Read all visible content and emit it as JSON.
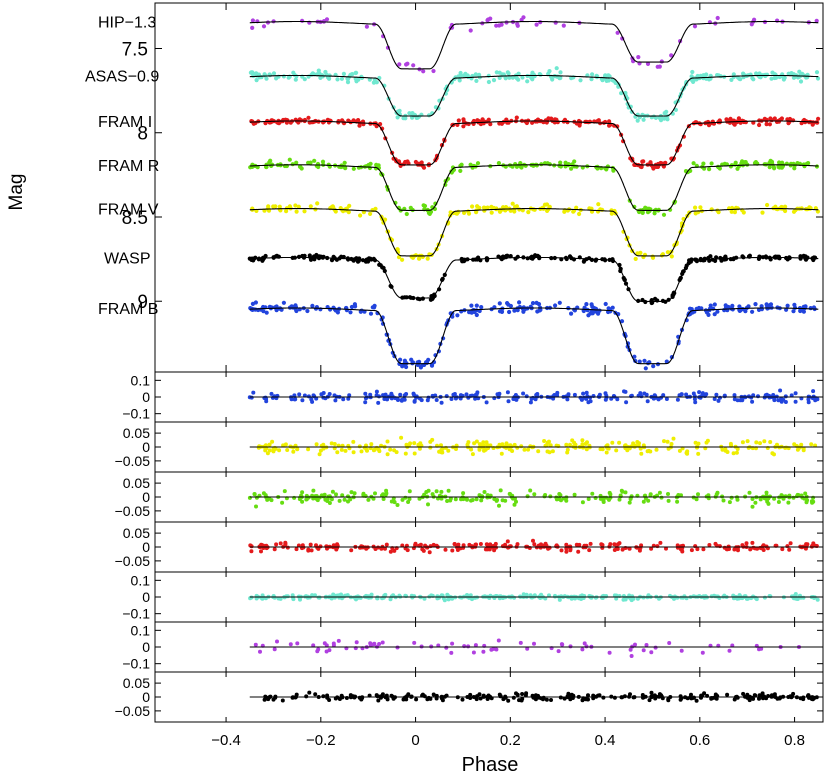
{
  "chart_data": {
    "type": "scatter",
    "title": "",
    "xlabel": "Phase",
    "ylabel": "Mag",
    "xlim": [
      -0.55,
      0.86
    ],
    "x_ticks": [
      -0.4,
      -0.2,
      0,
      0.2,
      0.4,
      0.6,
      0.8
    ],
    "x_tick_labels": [
      "−0.4",
      "−0.2",
      "0",
      "0.2",
      "0.4",
      "0.6",
      "0.8"
    ],
    "phase_range": [
      -0.35,
      0.85
    ],
    "main_panel": {
      "ylim": [
        9.42,
        7.23
      ],
      "y_ticks": [
        7.5,
        8,
        8.5,
        9
      ],
      "y_tick_labels": [
        "7.5",
        "8",
        "8.5",
        "9"
      ],
      "series": [
        {
          "name": "HIP−1.3",
          "color": "#b040e0",
          "base": 7.34,
          "depth1": 0.26,
          "depth2": 0.22,
          "n": 70,
          "scatter": 0.03
        },
        {
          "name": "ASAS−0.9",
          "color": "#70e8d0",
          "base": 7.66,
          "depth1": 0.22,
          "depth2": 0.22,
          "n": 320,
          "scatter": 0.025
        },
        {
          "name": "FRAM I",
          "color": "#e41a1c",
          "base": 7.93,
          "depth1": 0.24,
          "depth2": 0.24,
          "n": 300,
          "scatter": 0.015
        },
        {
          "name": "FRAM R",
          "color": "#66dd11",
          "base": 8.19,
          "depth1": 0.25,
          "depth2": 0.25,
          "n": 240,
          "scatter": 0.02
        },
        {
          "name": "FRAM V",
          "color": "#eeee00",
          "base": 8.45,
          "depth1": 0.26,
          "depth2": 0.26,
          "n": 220,
          "scatter": 0.02
        },
        {
          "name": "WASP",
          "color": "#000000",
          "base": 8.74,
          "depth1": 0.22,
          "depth2": 0.24,
          "n": 260,
          "scatter": 0.012
        },
        {
          "name": "FRAM B",
          "color": "#2244dd",
          "base": 9.04,
          "depth1": 0.31,
          "depth2": 0.31,
          "n": 280,
          "scatter": 0.025
        }
      ]
    },
    "residual_panels": [
      {
        "name": "FRAM B",
        "color": "#2244dd",
        "ylim": [
          -0.15,
          0.15
        ],
        "y_ticks": [
          0.1,
          0,
          -0.1
        ],
        "y_tick_labels": [
          "0.1",
          "0",
          "−0.1"
        ],
        "scatter": 0.025
      },
      {
        "name": "FRAM V",
        "color": "#eeee00",
        "ylim": [
          -0.09,
          0.09
        ],
        "y_ticks": [
          0.05,
          0,
          -0.05
        ],
        "y_tick_labels": [
          "0.05",
          "0",
          "−0.05"
        ],
        "scatter": 0.02
      },
      {
        "name": "FRAM R",
        "color": "#66dd11",
        "ylim": [
          -0.09,
          0.09
        ],
        "y_ticks": [
          0.05,
          0,
          -0.05
        ],
        "y_tick_labels": [
          "0.05",
          "0",
          "−0.05"
        ],
        "scatter": 0.02
      },
      {
        "name": "FRAM I",
        "color": "#e41a1c",
        "ylim": [
          -0.09,
          0.09
        ],
        "y_ticks": [
          0.05,
          0,
          -0.05
        ],
        "y_tick_labels": [
          "0.05",
          "0",
          "−0.05"
        ],
        "scatter": 0.012
      },
      {
        "name": "ASAS",
        "color": "#70e8d0",
        "ylim": [
          -0.15,
          0.15
        ],
        "y_ticks": [
          0.1,
          0,
          -0.1
        ],
        "y_tick_labels": [
          "0.1",
          "0",
          "−0.1"
        ],
        "scatter": 0.012
      },
      {
        "name": "HIP",
        "color": "#b040e0",
        "ylim": [
          -0.15,
          0.15
        ],
        "y_ticks": [
          0.1,
          0,
          -0.1
        ],
        "y_tick_labels": [
          "0.1",
          "0",
          "−0.1"
        ],
        "scatter": 0.035
      },
      {
        "name": "WASP",
        "color": "#000000",
        "ylim": [
          -0.09,
          0.09
        ],
        "y_ticks": [
          0.05,
          0,
          -0.05
        ],
        "y_tick_labels": [
          "0.05",
          "0",
          "−0.05"
        ],
        "scatter": 0.01
      }
    ]
  }
}
